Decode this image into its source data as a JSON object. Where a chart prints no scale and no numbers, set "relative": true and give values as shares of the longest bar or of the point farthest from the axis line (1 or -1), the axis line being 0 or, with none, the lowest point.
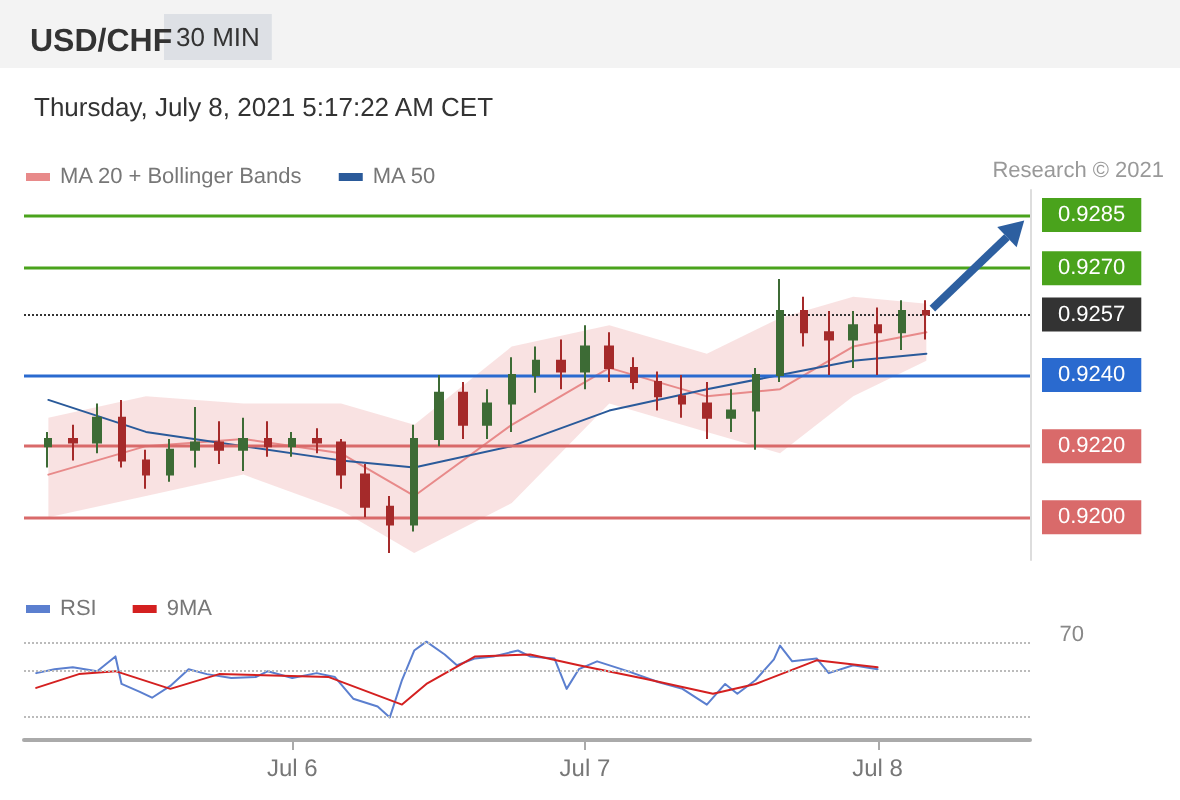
{
  "chart_data": [
    {
      "type": "candlestick",
      "title": "USD/CHF",
      "subtitle": "Thursday, July 8, 2021 5:17:22 AM CET",
      "annotations": [
        "30 MIN",
        "Research © 2021"
      ],
      "x": [
        "2021-07-05T04:00",
        "2021-07-05T06:00",
        "2021-07-05T08:00",
        "2021-07-05T10:00",
        "2021-07-05T12:00",
        "2021-07-05T14:00",
        "2021-07-05T16:00",
        "2021-07-05T18:00",
        "2021-07-05T20:00",
        "2021-07-05T22:00",
        "2021-07-06T00:00",
        "2021-07-06T02:00",
        "2021-07-06T04:00",
        "2021-07-06T06:00",
        "2021-07-06T08:00",
        "2021-07-06T10:00",
        "2021-07-06T12:00",
        "2021-07-06T14:00",
        "2021-07-06T16:00",
        "2021-07-06T18:00",
        "2021-07-06T20:00",
        "2021-07-06T22:00",
        "2021-07-07T00:00",
        "2021-07-07T02:00",
        "2021-07-07T04:00",
        "2021-07-07T06:00",
        "2021-07-07T08:00",
        "2021-07-07T10:00",
        "2021-07-07T12:00",
        "2021-07-07T14:00",
        "2021-07-07T16:00",
        "2021-07-07T18:00",
        "2021-07-07T20:00",
        "2021-07-07T22:00",
        "2021-07-08T00:00",
        "2021-07-08T02:00",
        "2021-07-08T04:00"
      ],
      "ohlc": [
        [
          0.922,
          0.9224,
          0.9214,
          0.9222
        ],
        [
          0.9222,
          0.9226,
          0.9216,
          0.9221
        ],
        [
          0.9221,
          0.9232,
          0.9218,
          0.9228
        ],
        [
          0.9228,
          0.9233,
          0.9214,
          0.9216
        ],
        [
          0.9216,
          0.9219,
          0.9208,
          0.9212
        ],
        [
          0.9212,
          0.9222,
          0.921,
          0.9219
        ],
        [
          0.9219,
          0.9231,
          0.9214,
          0.9221
        ],
        [
          0.9221,
          0.9227,
          0.9215,
          0.9219
        ],
        [
          0.9219,
          0.9228,
          0.9213,
          0.9222
        ],
        [
          0.9222,
          0.9227,
          0.9217,
          0.922
        ],
        [
          0.922,
          0.9224,
          0.9217,
          0.9222
        ],
        [
          0.9222,
          0.9225,
          0.9218,
          0.9221
        ],
        [
          0.9221,
          0.9222,
          0.9208,
          0.9212
        ],
        [
          0.9212,
          0.9215,
          0.92,
          0.9203
        ],
        [
          0.9203,
          0.9206,
          0.919,
          0.9198
        ],
        [
          0.9198,
          0.9226,
          0.9196,
          0.9222
        ],
        [
          0.9222,
          0.924,
          0.922,
          0.9235
        ],
        [
          0.9235,
          0.9238,
          0.9222,
          0.9226
        ],
        [
          0.9226,
          0.9236,
          0.9222,
          0.9232
        ],
        [
          0.9232,
          0.9245,
          0.9224,
          0.924
        ],
        [
          0.924,
          0.9248,
          0.9235,
          0.9244
        ],
        [
          0.9244,
          0.925,
          0.9236,
          0.9241
        ],
        [
          0.9241,
          0.9254,
          0.9236,
          0.9248
        ],
        [
          0.9248,
          0.9252,
          0.9238,
          0.9242
        ],
        [
          0.9242,
          0.9245,
          0.9236,
          0.9238
        ],
        [
          0.9238,
          0.9241,
          0.923,
          0.9234
        ],
        [
          0.9234,
          0.924,
          0.9228,
          0.9232
        ],
        [
          0.9232,
          0.9238,
          0.9222,
          0.9228
        ],
        [
          0.9228,
          0.9236,
          0.9224,
          0.923
        ],
        [
          0.923,
          0.9242,
          0.9219,
          0.924
        ],
        [
          0.924,
          0.9267,
          0.9238,
          0.9258
        ],
        [
          0.9258,
          0.9262,
          0.9248,
          0.9252
        ],
        [
          0.9252,
          0.9258,
          0.924,
          0.925
        ],
        [
          0.925,
          0.9258,
          0.9242,
          0.9254
        ],
        [
          0.9254,
          0.9259,
          0.924,
          0.9252
        ],
        [
          0.9252,
          0.9261,
          0.9247,
          0.9258
        ],
        [
          0.9258,
          0.9261,
          0.925,
          0.9257
        ]
      ],
      "series": [
        {
          "name": "MA 20 + Bollinger Bands",
          "type": "line",
          "color": "#e88a8a",
          "x": [
            "2021-07-05T04:00",
            "2021-07-05T12:00",
            "2021-07-05T20:00",
            "2021-07-06T04:00",
            "2021-07-06T10:00",
            "2021-07-06T18:00",
            "2021-07-07T02:00",
            "2021-07-07T10:00",
            "2021-07-07T16:00",
            "2021-07-07T22:00",
            "2021-07-08T04:00"
          ],
          "values": [
            0.9212,
            0.922,
            0.9222,
            0.9218,
            0.9206,
            0.9226,
            0.9242,
            0.9234,
            0.9236,
            0.9248,
            0.9252
          ],
          "lower": [
            0.92,
            0.9206,
            0.9212,
            0.9202,
            0.919,
            0.9204,
            0.9232,
            0.9224,
            0.9218,
            0.9234,
            0.9244
          ],
          "upper": [
            0.9228,
            0.9234,
            0.9232,
            0.9232,
            0.9226,
            0.9248,
            0.9254,
            0.9246,
            0.9256,
            0.9262,
            0.926
          ]
        },
        {
          "name": "MA 50",
          "type": "line",
          "color": "#2a5a9a",
          "x": [
            "2021-07-05T04:00",
            "2021-07-05T12:00",
            "2021-07-05T20:00",
            "2021-07-06T04:00",
            "2021-07-06T10:00",
            "2021-07-06T18:00",
            "2021-07-07T02:00",
            "2021-07-07T10:00",
            "2021-07-07T16:00",
            "2021-07-07T22:00",
            "2021-07-08T04:00"
          ],
          "values": [
            0.9233,
            0.9224,
            0.922,
            0.9216,
            0.9214,
            0.922,
            0.923,
            0.9236,
            0.924,
            0.9244,
            0.9246
          ]
        }
      ],
      "ref_lines": [
        {
          "axis": "y",
          "value": 0.9285,
          "color": "#4aa31c"
        },
        {
          "axis": "y",
          "value": 0.927,
          "color": "#4aa31c"
        },
        {
          "axis": "y",
          "value": 0.9257,
          "color": "#333333",
          "line_style": "dotted"
        },
        {
          "axis": "y",
          "value": 0.924,
          "color": "#2a6acf"
        },
        {
          "axis": "y",
          "value": 0.922,
          "color": "#d96a6a"
        },
        {
          "axis": "y",
          "value": 0.92,
          "color": "#d96a6a"
        }
      ],
      "yticks": [
        {
          "value": 0.92,
          "label": "0.9200"
        },
        {
          "value": 0.922,
          "label": "0.9220"
        },
        {
          "value": 0.924,
          "label": "0.9240"
        },
        {
          "value": 0.9257,
          "label": "0.9257"
        },
        {
          "value": 0.927,
          "label": "0.9270"
        },
        {
          "value": 0.9285,
          "label": "0.9285"
        }
      ],
      "xlim": [
        "2021-07-05T02:00",
        "2021-07-08T12:30"
      ],
      "ylim": [
        0.9188,
        0.9292
      ],
      "legend": "top left",
      "tick_labels": "y"
    },
    {
      "type": "line",
      "relative": true,
      "legend": "top left",
      "tick_labels": "x",
      "annotations": [
        "70"
      ],
      "xlim": [
        "2021-07-05T02:00",
        "2021-07-08T12:30"
      ],
      "xticks": [
        {
          "value": "2021-07-06T00:00",
          "label": "Jul 6"
        },
        {
          "value": "2021-07-07T00:00",
          "label": "Jul 7"
        },
        {
          "value": "2021-07-08T00:00",
          "label": "Jul 8"
        }
      ],
      "series": [
        {
          "name": "RSI",
          "color": "#5b7fcf",
          "x": [
            "2021-07-05T03:00",
            "2021-07-05T04:30",
            "2021-07-05T06:00",
            "2021-07-05T08:00",
            "2021-07-05T09:30",
            "2021-07-05T10:00",
            "2021-07-05T11:30",
            "2021-07-05T12:30",
            "2021-07-05T14:00",
            "2021-07-05T15:30",
            "2021-07-05T17:00",
            "2021-07-05T19:00",
            "2021-07-05T21:00",
            "2021-07-05T22:00",
            "2021-07-06T00:00",
            "2021-07-06T02:00",
            "2021-07-06T03:30",
            "2021-07-06T05:00",
            "2021-07-06T07:00",
            "2021-07-06T08:00",
            "2021-07-06T09:00",
            "2021-07-06T10:00",
            "2021-07-06T11:00",
            "2021-07-06T12:30",
            "2021-07-06T13:30",
            "2021-07-06T15:00",
            "2021-07-06T16:30",
            "2021-07-06T18:30",
            "2021-07-06T19:30",
            "2021-07-06T21:30",
            "2021-07-06T22:30",
            "2021-07-06T23:30",
            "2021-07-07T01:00",
            "2021-07-07T03:30",
            "2021-07-07T06:00",
            "2021-07-07T08:00",
            "2021-07-07T10:00",
            "2021-07-07T11:30",
            "2021-07-07T12:30",
            "2021-07-07T14:00",
            "2021-07-07T15:30",
            "2021-07-07T16:00",
            "2021-07-07T17:00",
            "2021-07-07T19:00",
            "2021-07-07T20:00",
            "2021-07-07T22:00",
            "2021-07-08T00:00"
          ],
          "values": [
            0.68,
            0.72,
            0.74,
            0.7,
            0.85,
            0.57,
            0.49,
            0.43,
            0.55,
            0.72,
            0.67,
            0.63,
            0.64,
            0.7,
            0.63,
            0.68,
            0.64,
            0.42,
            0.34,
            0.23,
            0.61,
            0.91,
            1,
            0.87,
            0.76,
            0.83,
            0.85,
            0.91,
            0.85,
            0.83,
            0.52,
            0.72,
            0.8,
            0.7,
            0.59,
            0.52,
            0.36,
            0.57,
            0.47,
            0.61,
            0.82,
            0.96,
            0.8,
            0.83,
            0.68,
            0.76,
            0.72
          ]
        },
        {
          "name": "9MA",
          "color": "#d42020",
          "x": [
            "2021-07-05T03:00",
            "2021-07-05T06:30",
            "2021-07-05T09:30",
            "2021-07-05T14:00",
            "2021-07-05T18:00",
            "2021-07-06T03:00",
            "2021-07-06T09:00",
            "2021-07-06T11:00",
            "2021-07-06T15:00",
            "2021-07-06T19:30",
            "2021-07-06T23:30",
            "2021-07-07T05:00",
            "2021-07-07T10:30",
            "2021-07-07T14:00",
            "2021-07-07T19:00",
            "2021-07-08T00:00"
          ],
          "values": [
            0.53,
            0.67,
            0.7,
            0.52,
            0.67,
            0.64,
            0.36,
            0.57,
            0.85,
            0.87,
            0.76,
            0.62,
            0.47,
            0.57,
            0.81,
            0.74
          ]
        }
      ],
      "ref_lines": [
        {
          "axis": "y",
          "value": 1.0,
          "color": "#bbbbbb",
          "line_style": "dotted"
        },
        {
          "axis": "y",
          "value": 0.7,
          "color": "#bbbbbb",
          "line_style": "dotted"
        },
        {
          "axis": "y",
          "value": 0.24,
          "color": "#bbbbbb",
          "line_style": "dotted"
        }
      ]
    }
  ]
}
